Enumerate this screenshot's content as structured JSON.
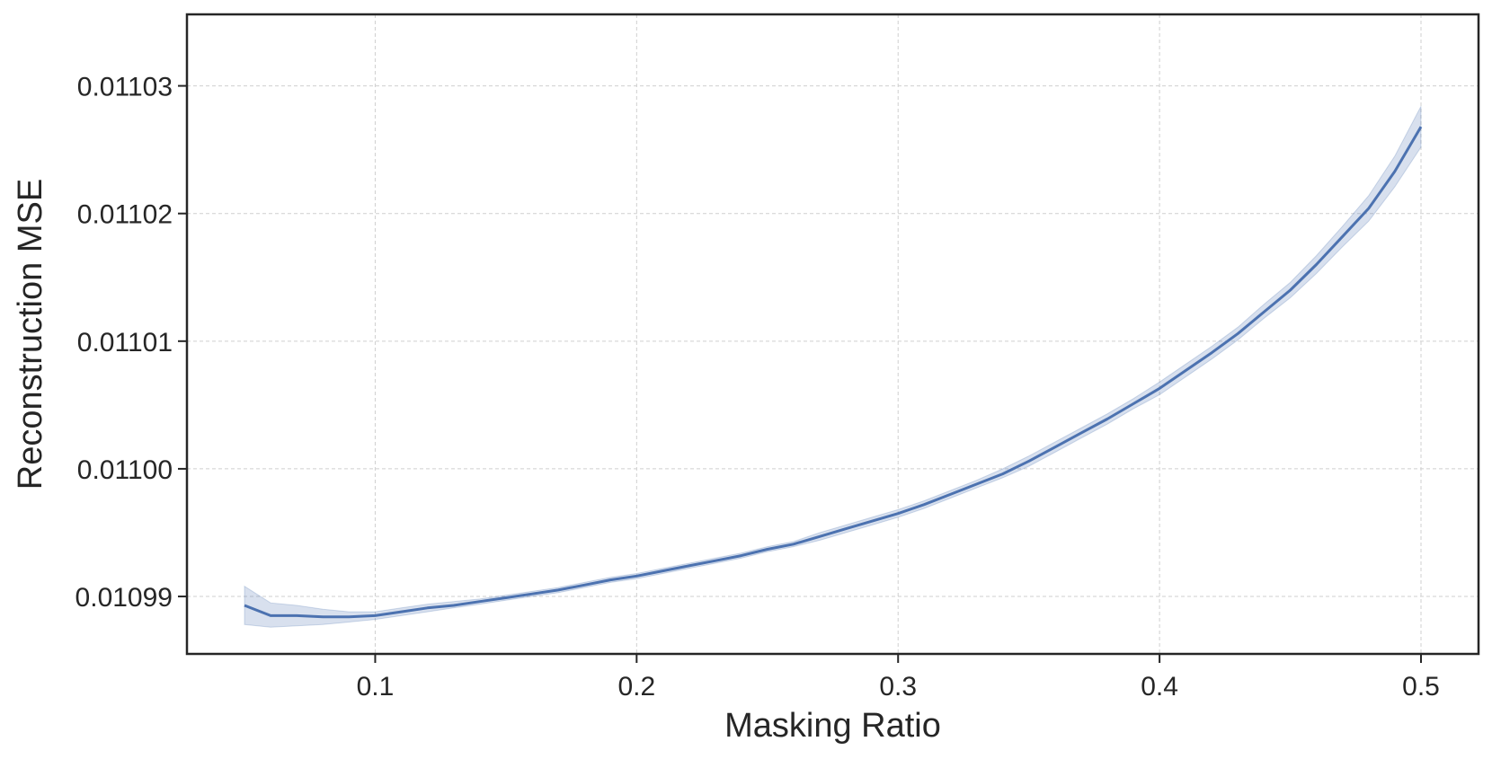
{
  "chart_data": {
    "type": "line",
    "title": "",
    "xlabel": "Masking Ratio",
    "ylabel": "Reconstruction MSE",
    "xlim": [
      0.028,
      0.522
    ],
    "ylim": [
      0.0109855,
      0.0110356
    ],
    "grid": true,
    "legend": "none",
    "x_ticks": [
      0.1,
      0.2,
      0.3,
      0.4,
      0.5
    ],
    "x_tick_labels": [
      "0.1",
      "0.2",
      "0.3",
      "0.4",
      "0.5"
    ],
    "y_ticks": [
      0.01099,
      0.011,
      0.01101,
      0.01102,
      0.01103
    ],
    "y_tick_labels": [
      "0.01099",
      "0.01100",
      "0.01101",
      "0.01102",
      "0.01103"
    ],
    "colors": {
      "line": "#4c72b0",
      "band": "#4c72b0",
      "grid": "#cfcfcf",
      "axes": "#262626"
    },
    "series": [
      {
        "x": [
          0.05,
          0.06,
          0.07,
          0.08,
          0.09,
          0.1,
          0.11,
          0.12,
          0.13,
          0.14,
          0.15,
          0.16,
          0.17,
          0.18,
          0.19,
          0.2,
          0.21,
          0.22,
          0.23,
          0.24,
          0.25,
          0.26,
          0.27,
          0.28,
          0.29,
          0.3,
          0.31,
          0.32,
          0.33,
          0.34,
          0.35,
          0.36,
          0.37,
          0.38,
          0.39,
          0.4,
          0.41,
          0.42,
          0.43,
          0.44,
          0.45,
          0.46,
          0.47,
          0.48,
          0.49,
          0.5
        ],
        "y": [
          0.0109893,
          0.0109885,
          0.0109885,
          0.0109884,
          0.0109884,
          0.0109885,
          0.0109888,
          0.0109891,
          0.0109893,
          0.0109896,
          0.0109899,
          0.0109902,
          0.0109905,
          0.0109909,
          0.0109913,
          0.0109916,
          0.010992,
          0.0109924,
          0.0109928,
          0.0109932,
          0.0109937,
          0.0109941,
          0.0109947,
          0.0109953,
          0.0109959,
          0.0109965,
          0.0109972,
          0.010998,
          0.0109988,
          0.0109996,
          0.0110006,
          0.0110017,
          0.0110028,
          0.0110039,
          0.0110051,
          0.0110063,
          0.0110077,
          0.0110091,
          0.0110106,
          0.0110123,
          0.011014,
          0.011016,
          0.0110182,
          0.0110204,
          0.0110233,
          0.0110268
        ],
        "lower": [
          0.0109878,
          0.0109876,
          0.0109877,
          0.0109878,
          0.010988,
          0.0109882,
          0.0109885,
          0.0109888,
          0.0109891,
          0.0109894,
          0.0109897,
          0.01099,
          0.0109903,
          0.0109907,
          0.0109911,
          0.0109914,
          0.0109918,
          0.0109922,
          0.0109926,
          0.010993,
          0.0109935,
          0.0109939,
          0.0109944,
          0.010995,
          0.0109956,
          0.0109962,
          0.0109969,
          0.0109977,
          0.0109985,
          0.0109993,
          0.0110002,
          0.0110013,
          0.0110024,
          0.0110035,
          0.0110047,
          0.0110058,
          0.0110072,
          0.0110086,
          0.0110101,
          0.0110118,
          0.0110134,
          0.0110153,
          0.0110174,
          0.0110194,
          0.0110221,
          0.0110252
        ],
        "upper": [
          0.0109908,
          0.0109895,
          0.0109893,
          0.010989,
          0.0109888,
          0.0109888,
          0.0109891,
          0.0109894,
          0.0109896,
          0.0109898,
          0.0109901,
          0.0109904,
          0.0109907,
          0.0109911,
          0.0109915,
          0.0109918,
          0.0109922,
          0.0109926,
          0.010993,
          0.0109934,
          0.0109939,
          0.0109943,
          0.010995,
          0.0109956,
          0.0109962,
          0.0109968,
          0.0109975,
          0.0109983,
          0.0109991,
          0.011,
          0.011001,
          0.0110021,
          0.0110032,
          0.0110043,
          0.0110055,
          0.0110068,
          0.0110082,
          0.0110096,
          0.0110111,
          0.0110129,
          0.0110146,
          0.0110167,
          0.011019,
          0.0110214,
          0.0110245,
          0.0110284
        ]
      }
    ]
  }
}
